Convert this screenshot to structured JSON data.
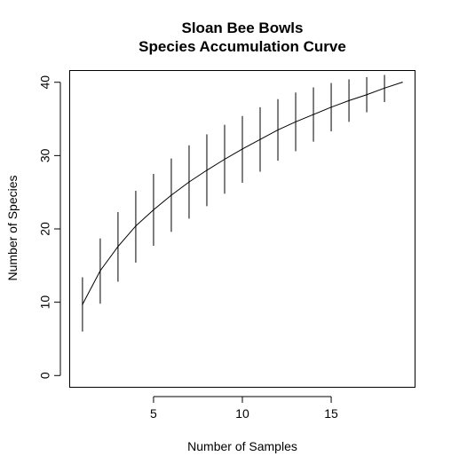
{
  "chart_data": {
    "type": "line",
    "title": "Sloan Bee Bowls",
    "subtitle": "Species Accumulation Curve",
    "xlabel": "Number of Samples",
    "ylabel": "Number of Species",
    "xlim": [
      0.28,
      19.72
    ],
    "ylim": [
      -1.6,
      41.6
    ],
    "x_ticks": [
      5,
      10,
      15
    ],
    "y_ticks": [
      0,
      10,
      20,
      30,
      40
    ],
    "grid": false,
    "line_color": "#000000",
    "series": [
      {
        "x": [
          1,
          2,
          3,
          4,
          5,
          6,
          7,
          8,
          9,
          10,
          11,
          12,
          13,
          14,
          15,
          16,
          17,
          18,
          19
        ],
        "y": [
          9.7,
          14.3,
          17.6,
          20.4,
          22.6,
          24.6,
          26.4,
          28.0,
          29.5,
          30.9,
          32.2,
          33.5,
          34.6,
          35.6,
          36.6,
          37.5,
          38.3,
          39.2,
          40.0
        ],
        "error_low": [
          6.0,
          9.8,
          12.8,
          15.4,
          17.7,
          19.6,
          21.4,
          23.1,
          24.8,
          26.3,
          27.8,
          29.3,
          30.6,
          31.9,
          33.3,
          34.6,
          35.9,
          37.3
        ],
        "error_high": [
          13.4,
          18.7,
          22.3,
          25.2,
          27.5,
          29.6,
          31.4,
          32.9,
          34.2,
          35.4,
          36.6,
          37.7,
          38.6,
          39.3,
          39.9,
          40.4,
          40.7,
          41.0
        ]
      }
    ]
  }
}
